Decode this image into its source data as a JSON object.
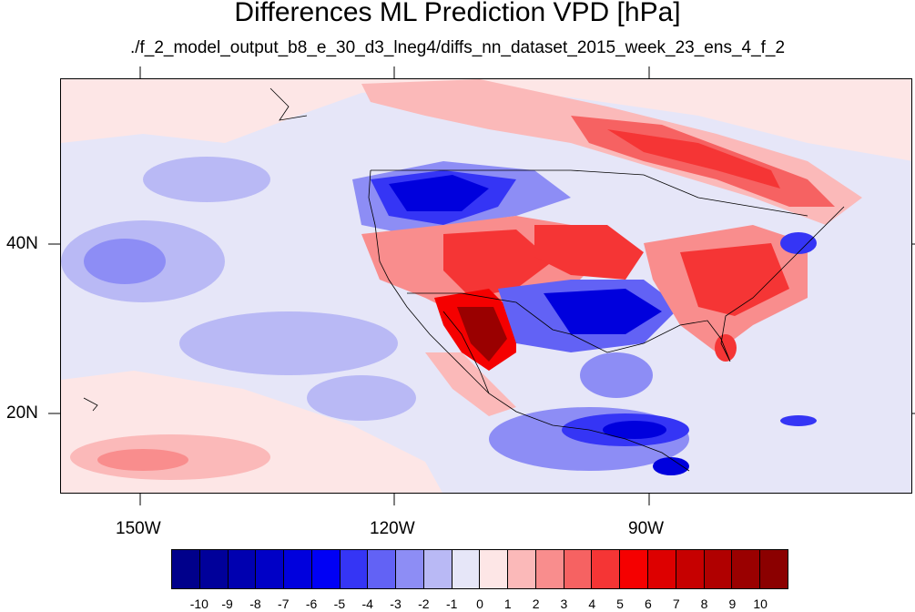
{
  "title": "Differences ML Prediction VPD [hPa]",
  "subtitle": "./f_2_model_output_b8_e_30_d3_lneg4/diffs_nn_dataset_2015_week_23_ens_4_f_2",
  "x_axis": {
    "tick_labels": [
      "150W",
      "120W",
      "90W"
    ]
  },
  "y_axis": {
    "tick_labels": [
      "40N",
      "20N"
    ]
  },
  "colorbar": {
    "labels": [
      "-10",
      "-9",
      "-8",
      "-7",
      "-6",
      "-5",
      "-4",
      "-3",
      "-2",
      "-1",
      "0",
      "1",
      "2",
      "3",
      "4",
      "5",
      "6",
      "7",
      "8",
      "9",
      "10"
    ],
    "colors": [
      "#00008b",
      "#00009a",
      "#0000b0",
      "#0000c6",
      "#0000dd",
      "#0000f5",
      "#3535f5",
      "#6262f5",
      "#8d8df5",
      "#b9b9f5",
      "#e6e6f8",
      "#fde6e6",
      "#fbb9b9",
      "#f98d8d",
      "#f66262",
      "#f53535",
      "#f50000",
      "#dd0000",
      "#c60000",
      "#b00000",
      "#9a0000",
      "#8b0000"
    ]
  }
}
